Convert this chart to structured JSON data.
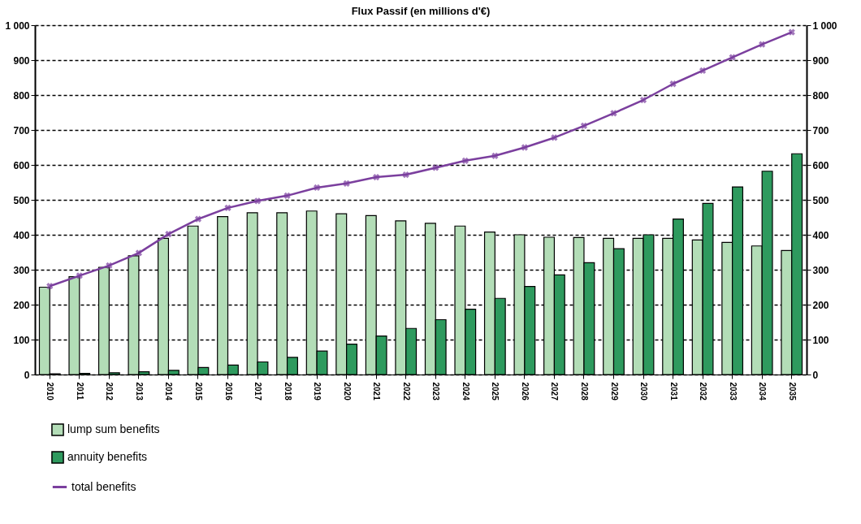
{
  "chart_data": {
    "type": "bar",
    "title": "Flux Passif (en millions d'€)",
    "categories": [
      "2010",
      "2011",
      "2012",
      "2013",
      "2014",
      "2015",
      "2016",
      "2017",
      "2018",
      "2019",
      "2020",
      "2021",
      "2022",
      "2023",
      "2024",
      "2025",
      "2026",
      "2027",
      "2028",
      "2029",
      "2030",
      "2031",
      "2032",
      "2033",
      "2034",
      "2035"
    ],
    "series": [
      {
        "name": "lump sum benefits",
        "color": "#b3ddb7",
        "values": [
          250,
          280,
          307,
          340,
          390,
          425,
          452,
          463,
          463,
          468,
          460,
          455,
          440,
          433,
          425,
          408,
          400,
          393,
          392,
          390,
          390,
          390,
          385,
          378,
          368,
          355
        ]
      },
      {
        "name": "annuity benefits",
        "color": "#2e9a5e",
        "values": [
          2,
          3,
          5,
          8,
          12,
          20,
          27,
          36,
          49,
          67,
          87,
          110,
          132,
          157,
          187,
          218,
          252,
          285,
          320,
          360,
          400,
          445,
          490,
          537,
          582,
          632
        ]
      },
      {
        "name": "total benefits",
        "type": "line",
        "color": "#7b3f9e",
        "values": [
          253,
          283,
          312,
          348,
          402,
          445,
          477,
          497,
          512,
          535,
          547,
          565,
          572,
          592,
          612,
          626,
          650,
          678,
          712,
          748,
          786,
          832,
          870,
          908,
          945,
          980
        ]
      }
    ],
    "ylim": [
      0,
      1000
    ],
    "yticks": [
      0,
      100,
      200,
      300,
      400,
      500,
      600,
      700,
      800,
      900,
      {
        "value": 1000,
        "label": "1 000"
      }
    ],
    "y2lim": [
      0,
      1000
    ],
    "y2ticks": [
      0,
      100,
      200,
      300,
      400,
      500,
      600,
      700,
      800,
      900,
      {
        "value": 1000,
        "label": "1 000"
      }
    ],
    "grid": "y",
    "legend": "bottom left",
    "marker": "cross"
  }
}
